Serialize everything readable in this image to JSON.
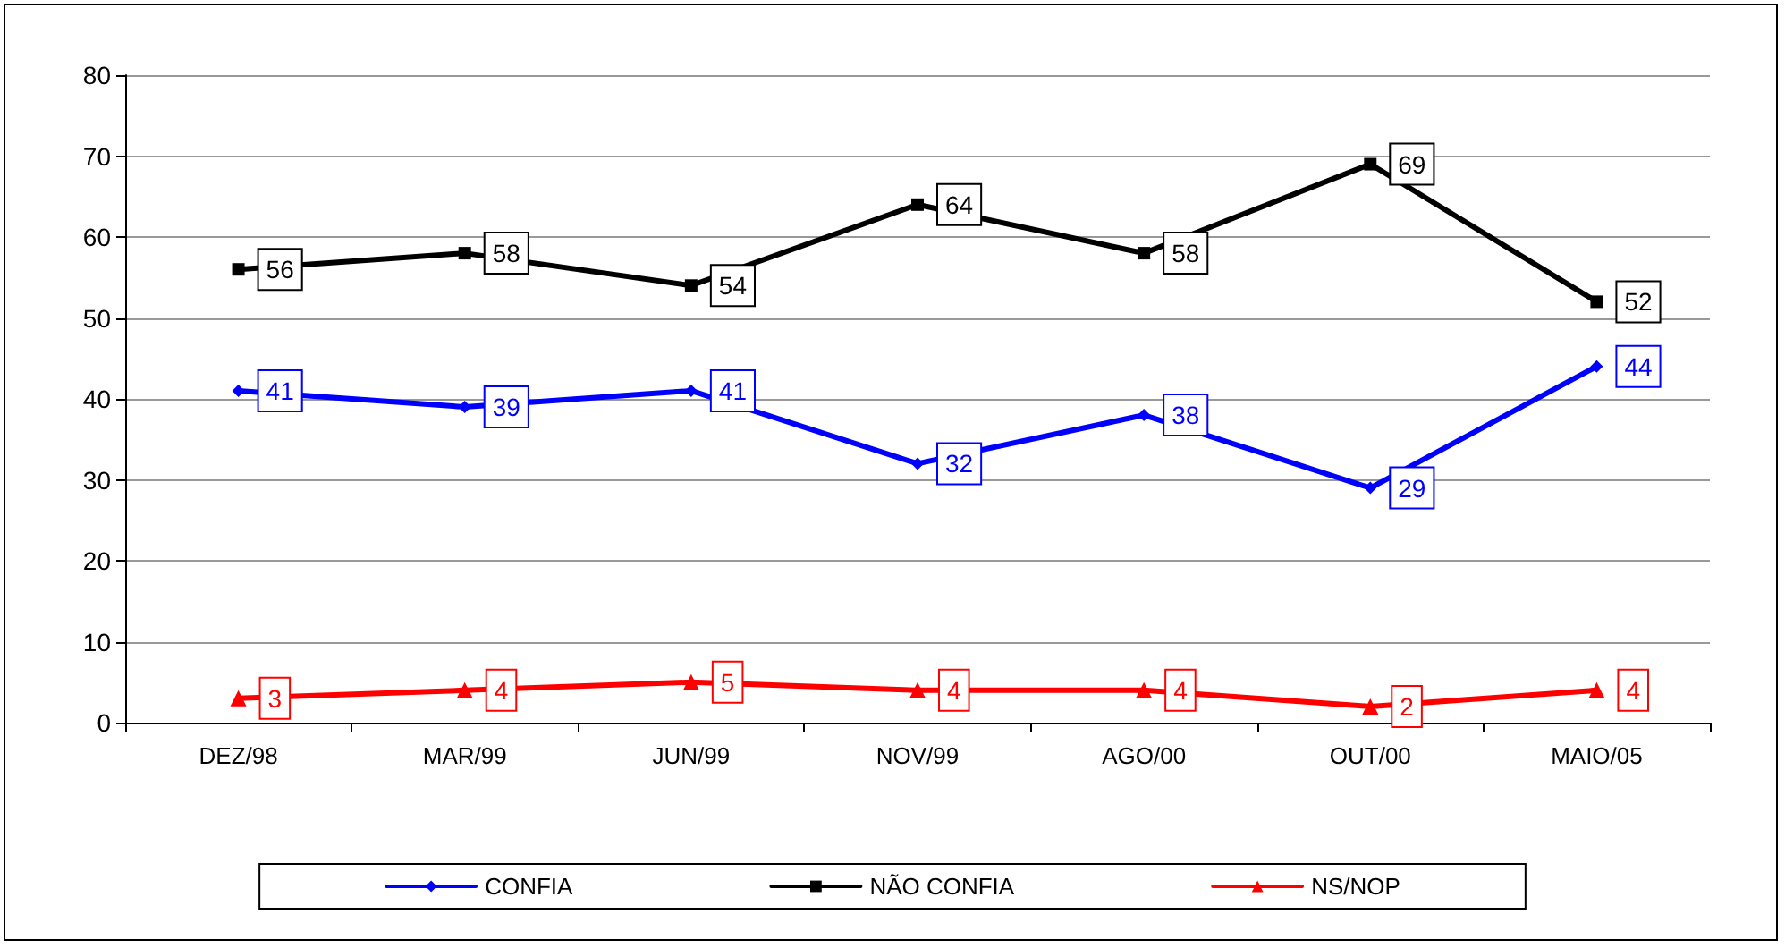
{
  "chart_data": {
    "type": "line",
    "categories": [
      "DEZ/98",
      "MAR/99",
      "JUN/99",
      "NOV/99",
      "AGO/00",
      "OUT/00",
      "MAIO/05"
    ],
    "series": [
      {
        "name": "CONFIA",
        "color": "#0000ff",
        "marker": "diamond",
        "values": [
          41,
          39,
          41,
          32,
          38,
          29,
          44
        ]
      },
      {
        "name": "NÃO CONFIA",
        "color": "#000000",
        "marker": "square",
        "values": [
          56,
          58,
          54,
          64,
          58,
          69,
          52
        ]
      },
      {
        "name": "NS/NOP",
        "color": "#ff0000",
        "marker": "triangle",
        "values": [
          3,
          4,
          5,
          4,
          4,
          2,
          4
        ]
      }
    ],
    "ylim": [
      0,
      80
    ],
    "yticks": [
      0,
      10,
      20,
      30,
      40,
      50,
      60,
      70,
      80
    ],
    "grid": "y",
    "legend": "bottom",
    "data_labels": true,
    "line_style": "solid"
  }
}
